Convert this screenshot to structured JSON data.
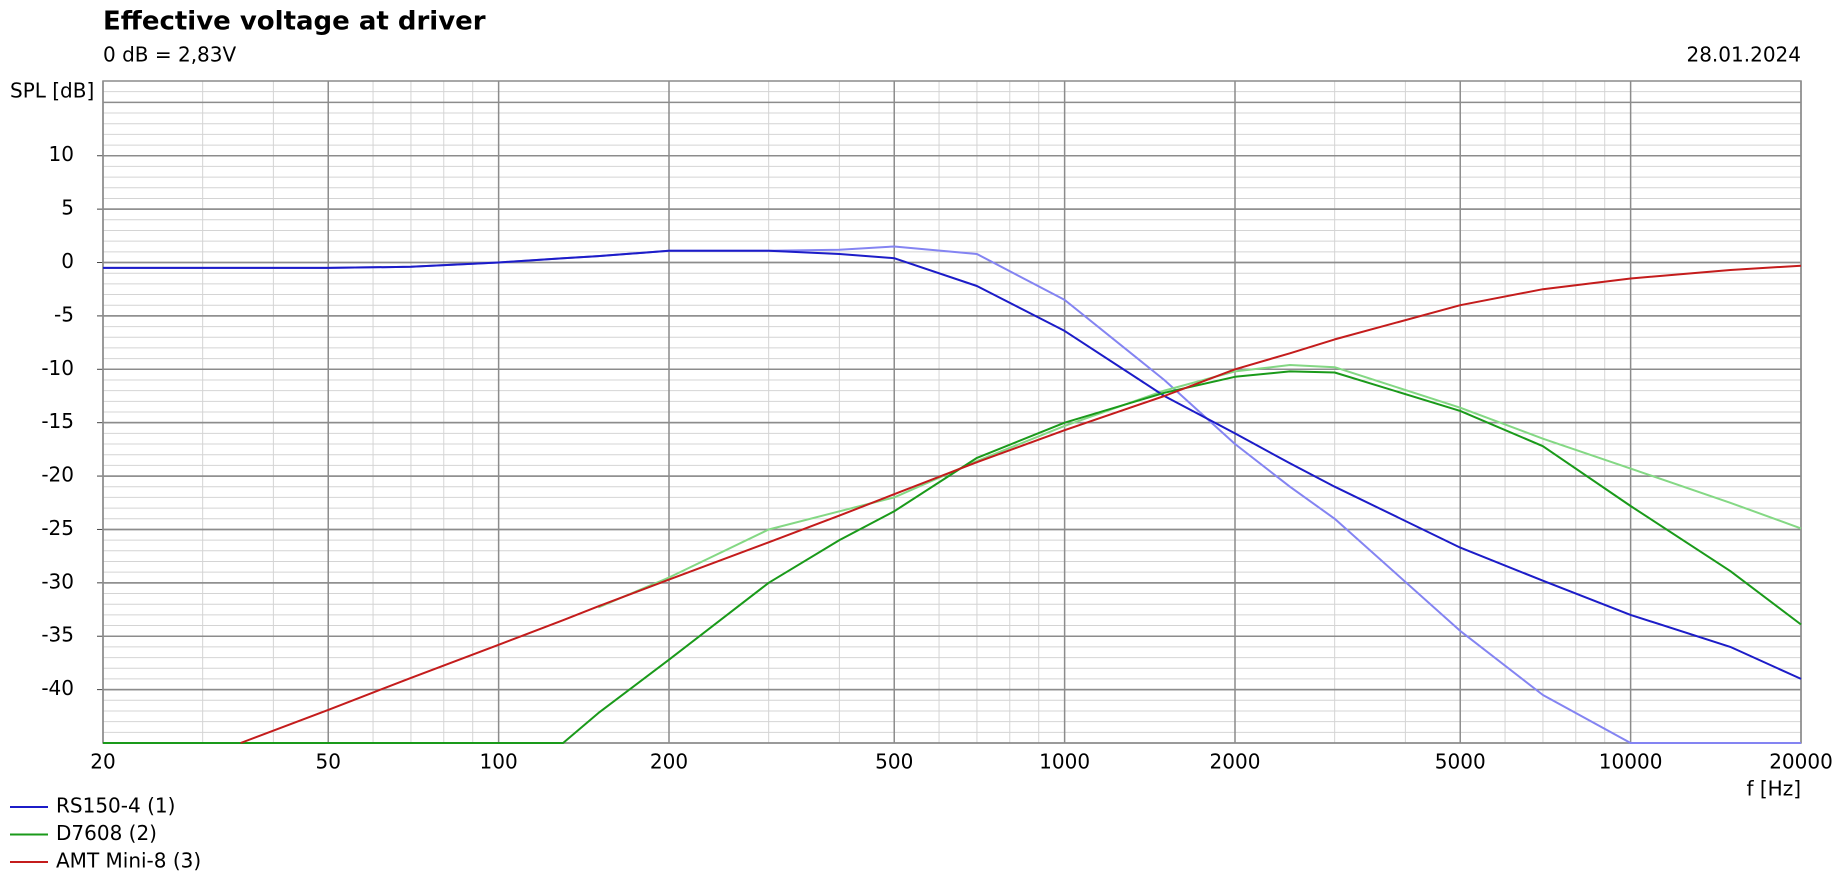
{
  "chart_data": {
    "type": "line",
    "title": "Effective voltage at driver",
    "subtitle": "0 dB = 2,83V",
    "date": "28.01.2024",
    "y_label": "SPL [dB]",
    "x_label": "f [Hz]",
    "log_x": true,
    "grid": true,
    "legend": "bottom-left",
    "xlim": [
      20,
      20000
    ],
    "ylim": [
      -45,
      17
    ],
    "xticks": [
      20,
      50,
      100,
      200,
      500,
      1000,
      2000,
      5000,
      10000,
      20000
    ],
    "yticks": [
      -40,
      -35,
      -30,
      -25,
      -20,
      -15,
      -10,
      -5,
      0,
      5,
      10
    ],
    "x": [
      20,
      35,
      50,
      70,
      100,
      130,
      150,
      200,
      300,
      400,
      500,
      700,
      1000,
      1500,
      2000,
      2500,
      3000,
      5000,
      7000,
      10000,
      15000,
      20000
    ],
    "series": [
      {
        "color": "#8484f2",
        "values": [
          -0.5,
          -0.5,
          -0.5,
          -0.4,
          0,
          0.4,
          0.6,
          1.1,
          1.1,
          1.2,
          1.5,
          0.8,
          -3.5,
          -11,
          -17,
          -21,
          -24,
          -34.5,
          -40.5,
          -45,
          -45,
          -45
        ]
      },
      {
        "color": "#84d884",
        "values": [
          null,
          null,
          null,
          null,
          null,
          null,
          -32.3,
          -29.5,
          -25,
          -23.3,
          -22,
          -18.6,
          -15.3,
          -12,
          -10.2,
          -9.6,
          -9.8,
          -13.6,
          -16.5,
          -19.3,
          -22.5,
          -24.9
        ]
      },
      {
        "name": "RS150-4 (1)",
        "color": "#1c1cc8",
        "values": [
          -0.5,
          -0.5,
          -0.5,
          -0.4,
          0,
          0.4,
          0.6,
          1.1,
          1.1,
          0.8,
          0.4,
          -2.2,
          -6.4,
          -12.5,
          -16,
          -18.8,
          -21,
          -26.7,
          -29.8,
          -33,
          -36,
          -39
        ]
      },
      {
        "name": "D7608 (2)",
        "color": "#1a9a1a",
        "values": [
          -45,
          -45,
          -45,
          -45,
          -45,
          -45,
          -42.2,
          -37.2,
          -30,
          -26,
          -23.3,
          -18.3,
          -15,
          -12.2,
          -10.7,
          -10.2,
          -10.3,
          -13.9,
          -17.2,
          -22.8,
          -28.9,
          -33.9
        ]
      },
      {
        "name": "AMT Mini-8 (3)",
        "color": "#c41c1c",
        "values": [
          null,
          -45,
          -41.9,
          -38.9,
          -35.8,
          -33.5,
          -32.2,
          -29.7,
          -26.2,
          -23.7,
          -21.7,
          -18.7,
          -15.7,
          -12.5,
          -10,
          -8.5,
          -7.2,
          -4,
          -2.5,
          -1.5,
          -0.7,
          -0.3
        ]
      }
    ]
  }
}
